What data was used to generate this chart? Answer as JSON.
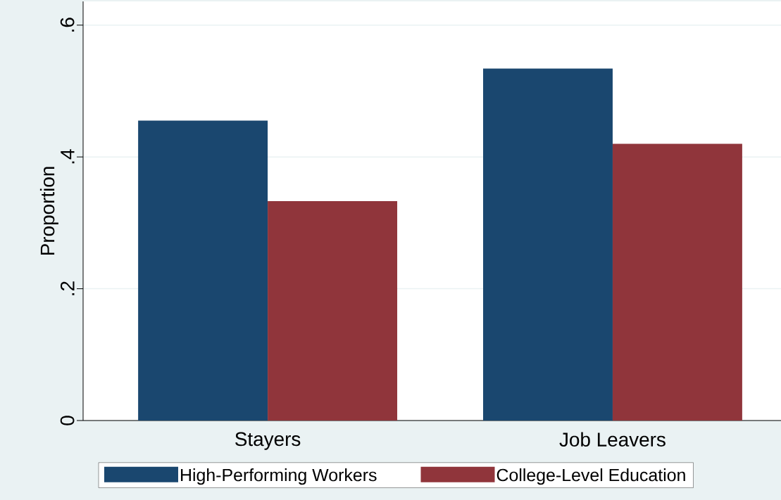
{
  "chart_data": {
    "type": "bar",
    "ylabel": "Proportion",
    "categories": [
      "Stayers",
      "Job Leavers"
    ],
    "series": [
      {
        "name": "High-Performing Workers",
        "color": "#1a476f",
        "values": [
          0.455,
          0.534
        ]
      },
      {
        "name": "College-Level Education",
        "color": "#90353b",
        "values": [
          0.333,
          0.42
        ]
      }
    ],
    "ylim": [
      0,
      0.636
    ],
    "yticks": [
      {
        "value": 0,
        "label": "0"
      },
      {
        "value": 0.2,
        "label": ".2"
      },
      {
        "value": 0.4,
        "label": ".4"
      },
      {
        "value": 0.6,
        "label": ".6"
      }
    ],
    "grid": "y",
    "legend": "bottom"
  }
}
